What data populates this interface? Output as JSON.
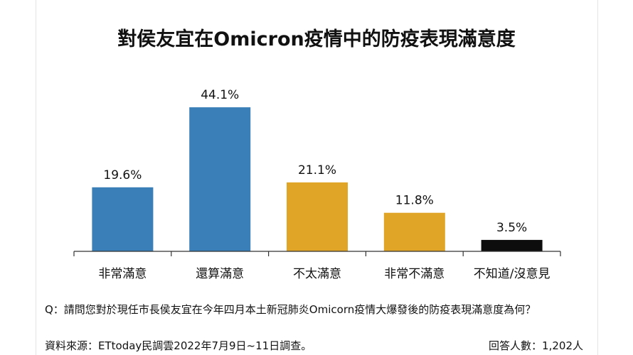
{
  "chart_data": {
    "type": "bar",
    "title": "對侯友宜在Omicron疫情中的防疫表現滿意度",
    "categories": [
      "非常滿意",
      "還算滿意",
      "不太滿意",
      "非常不滿意",
      "不知道/沒意見"
    ],
    "values": [
      19.6,
      44.1,
      21.1,
      11.8,
      3.5
    ],
    "value_labels": [
      "19.6%",
      "44.1%",
      "21.1%",
      "11.8%",
      "3.5%"
    ],
    "bar_colors": [
      "#3a7fb8",
      "#3a7fb8",
      "#e0a526",
      "#e0a526",
      "#0d0d0d"
    ],
    "ylim": [
      0,
      50
    ],
    "grid": false,
    "legend": "none"
  },
  "footer": {
    "question": "Q：請問您對於現任市長侯友宜在今年四月本土新冠肺炎Omicorn疫情大爆發後的防疫表現滿意度為何？",
    "source": "資料來源：ETtoday民調雲2022年7月9日~11日調查。",
    "respondents": "回答人數：1,202人"
  }
}
